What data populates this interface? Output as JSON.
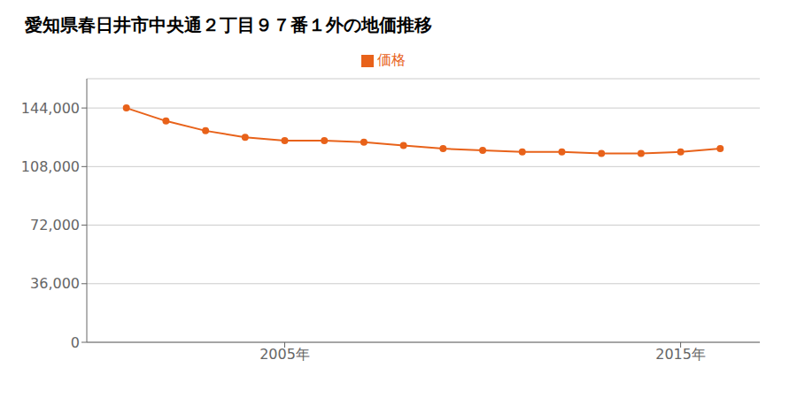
{
  "chart_data": {
    "type": "line",
    "title": "愛知県春日井市中央通２丁目９７番１外の地価推移",
    "x": [
      2001,
      2002,
      2003,
      2004,
      2005,
      2006,
      2007,
      2008,
      2009,
      2010,
      2011,
      2012,
      2013,
      2014,
      2015,
      2016
    ],
    "series": [
      {
        "name": "価格",
        "color": "#e8621a",
        "marker": "circle",
        "values": [
          144000,
          136000,
          130000,
          126000,
          124000,
          124000,
          123000,
          121000,
          119000,
          118000,
          117000,
          117000,
          116000,
          116000,
          117000,
          119000
        ]
      }
    ],
    "xlim": [
      2000,
      2017
    ],
    "xticks": [
      {
        "value": 2005,
        "label": "2005年"
      },
      {
        "value": 2015,
        "label": "2015年"
      }
    ],
    "ylim": [
      0,
      162000
    ],
    "yticks": [
      0,
      {
        "value": 36000,
        "label": "36,000"
      },
      {
        "value": 72000,
        "label": "72,000"
      },
      {
        "value": 108000,
        "label": "108,000"
      },
      {
        "value": 144000,
        "label": "144,000"
      }
    ],
    "grid": true,
    "legend": "top"
  }
}
